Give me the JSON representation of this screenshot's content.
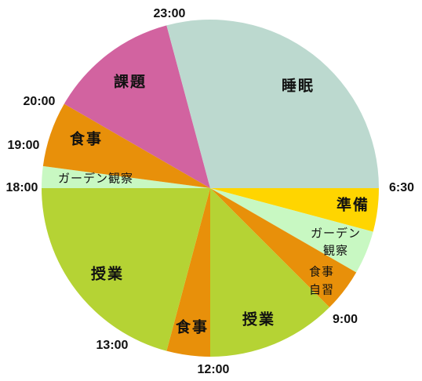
{
  "chart_data": {
    "type": "pie",
    "categories": [
      [
        "準備"
      ],
      [
        "ガーデン",
        "観察"
      ],
      [
        "食事",
        "自習"
      ],
      [
        "授業"
      ],
      [
        "食事"
      ],
      [
        "授業"
      ],
      [
        "ガーデン観察"
      ],
      [
        "食事"
      ],
      [
        "課題"
      ],
      [
        "睡眠"
      ]
    ],
    "values": [
      1,
      1,
      1,
      3,
      1,
      5,
      0.5,
      1.5,
      3,
      7
    ],
    "colors": [
      "#ffd500",
      "#c8f8c2",
      "#e8900a",
      "#b5d334",
      "#e8900a",
      "#b5d334",
      "#c8f8c2",
      "#e8900a",
      "#d263a0",
      "#bcd9cf"
    ],
    "time_labels": [
      "6:30",
      "9:00",
      "12:00",
      "13:00",
      "18:00",
      "19:00",
      "20:00",
      "23:00"
    ]
  }
}
